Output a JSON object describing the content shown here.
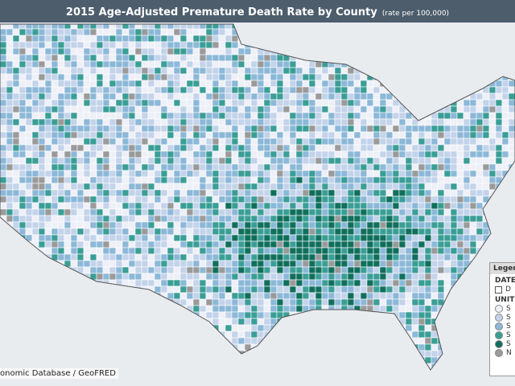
{
  "header": {
    "title": "2015 Age-Adjusted Premature Death Rate by County",
    "subtitle": "(rate per 100,000)"
  },
  "source": "onomic Database / GeoFRED",
  "legend": {
    "title": "Legend",
    "date_heading": "DATE",
    "date_item": "D",
    "unit_heading": "UNIT",
    "items": [
      "S",
      "S",
      "S",
      "S",
      "S",
      "N"
    ]
  }
}
